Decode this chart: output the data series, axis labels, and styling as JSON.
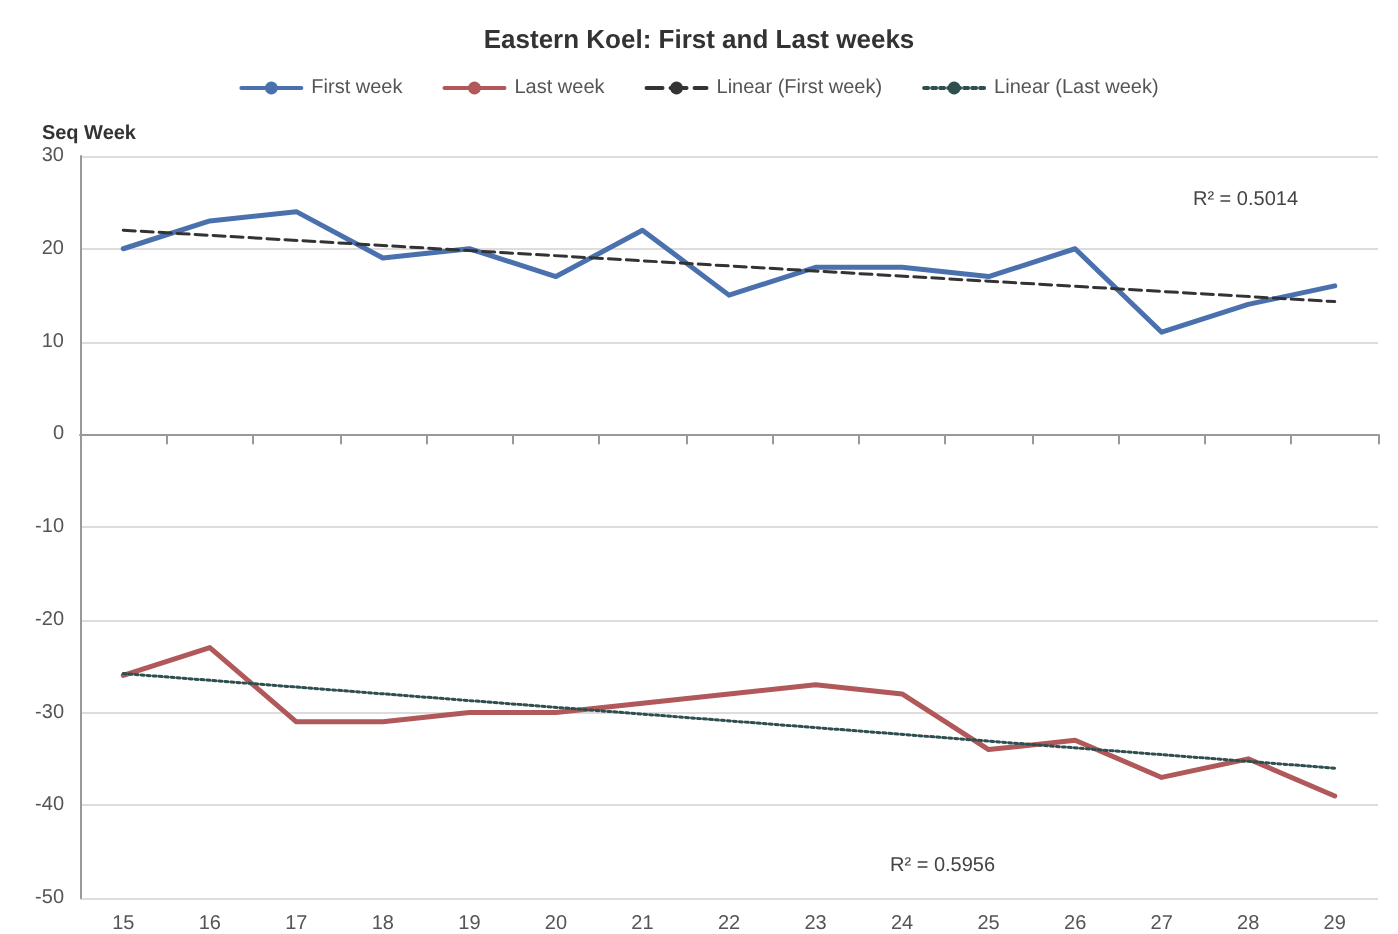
{
  "chart_data": {
    "type": "line",
    "title": "Eastern Koel: First and Last weeks",
    "ylabel": "Seq Week",
    "categories": [
      "15",
      "16",
      "17",
      "18",
      "19",
      "20",
      "21",
      "22",
      "23",
      "24",
      "25",
      "26",
      "27",
      "28",
      "29"
    ],
    "series": [
      {
        "name": "First week",
        "color": "#4a70ae",
        "values": [
          20,
          23,
          24,
          19,
          20,
          17,
          22,
          15,
          18,
          18,
          17,
          20,
          11,
          14,
          16
        ]
      },
      {
        "name": "Last week",
        "color": "#b0585a",
        "values": [
          -26,
          -23,
          -31,
          -31,
          -30,
          -30,
          -29,
          -28,
          -27,
          -28,
          -34,
          -33,
          -37,
          -35,
          -39
        ]
      },
      {
        "name": "Linear (First week)",
        "color": "#333333",
        "line_style": "dashed",
        "x": [
          "15",
          "29"
        ],
        "values": [
          22,
          14.3
        ]
      },
      {
        "name": "Linear (Last week)",
        "color": "#2f4f4f",
        "line_style": "dotted",
        "x": [
          "15",
          "29"
        ],
        "values": [
          -25.8,
          -36
        ]
      }
    ],
    "annotations": [
      "R² = 0.5014",
      "R² = 0.5956"
    ],
    "ylim": [
      -50,
      30
    ],
    "yticks": [
      -50,
      -40,
      -30,
      -20,
      -10,
      0,
      10,
      20,
      30
    ],
    "grid": "y",
    "legend": "top",
    "marker": "none",
    "line_style": "solid"
  }
}
